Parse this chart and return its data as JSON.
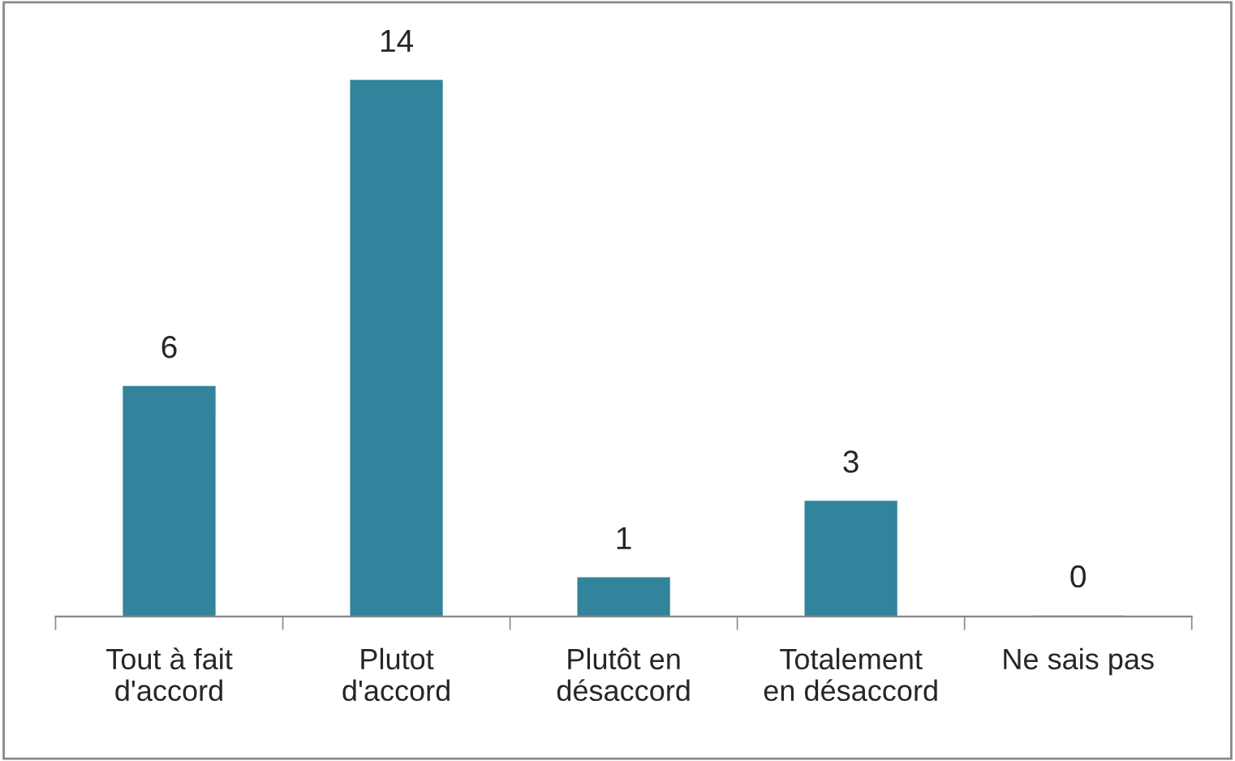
{
  "chart_data": {
    "type": "bar",
    "categories": [
      "Tout à fait\nd'accord",
      "Plutot\nd'accord",
      "Plutôt en\ndésaccord",
      "Totalement\nen désaccord",
      "Ne sais pas"
    ],
    "values": [
      6,
      14,
      1,
      3,
      0
    ],
    "color": "#31849b",
    "data_labels": true,
    "grid": false,
    "legend": false
  }
}
